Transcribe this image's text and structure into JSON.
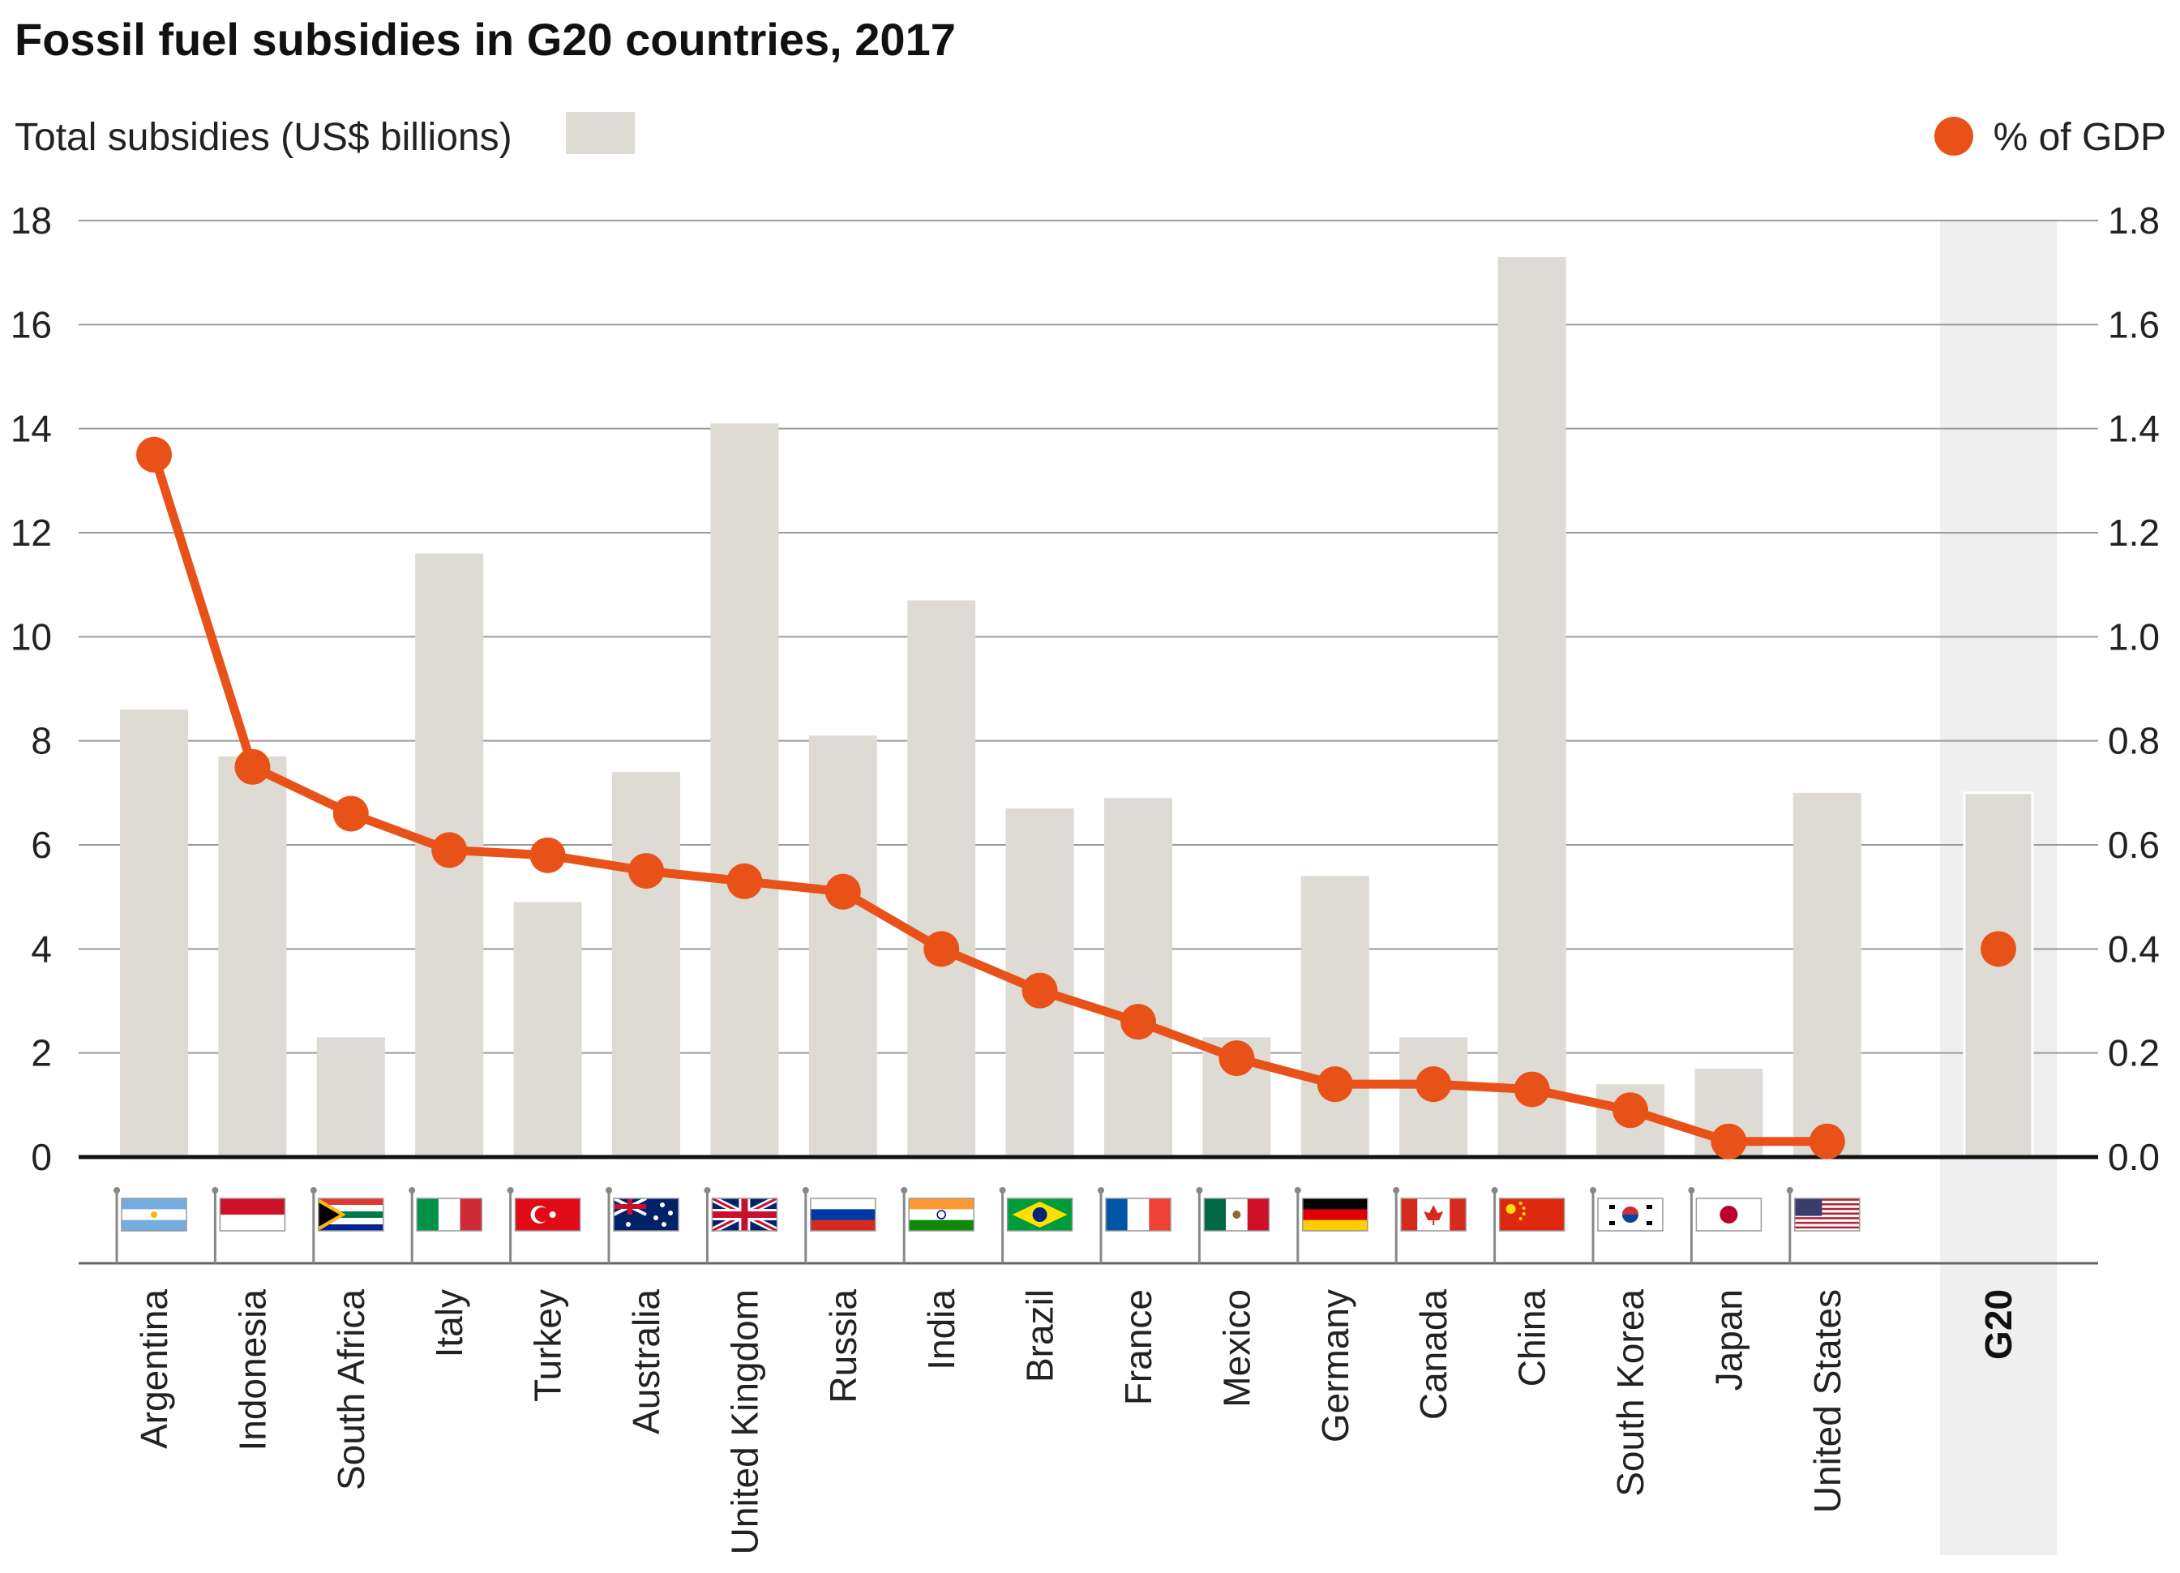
{
  "chart_data": {
    "type": "bar",
    "title": "Fossil fuel subsidies in G20 countries, 2017",
    "legend": {
      "bars_label": "Total subsidies (US$ billions)",
      "line_label": "% of GDP",
      "bars_placement": "top-left",
      "line_placement": "top-right"
    },
    "colors": {
      "bar": "#dddbd3",
      "line": "#e85219",
      "g20_band": "#efefef",
      "grid": "#9a9a9a",
      "axis": "#111111"
    },
    "categories": [
      "Argentina",
      "Indonesia",
      "South Africa",
      "Italy",
      "Turkey",
      "Australia",
      "United Kingdom",
      "Russia",
      "India",
      "Brazil",
      "France",
      "Mexico",
      "Germany",
      "Canada",
      "China",
      "South Korea",
      "Japan",
      "United States"
    ],
    "series": [
      {
        "name": "Total subsidies (US$ billions)",
        "axis": "left",
        "values": [
          8.6,
          7.7,
          2.3,
          11.6,
          4.9,
          7.4,
          14.1,
          8.1,
          10.7,
          6.7,
          6.9,
          2.3,
          5.4,
          2.3,
          17.3,
          1.4,
          1.7,
          7.0
        ]
      },
      {
        "name": "% of GDP",
        "axis": "right",
        "values": [
          1.35,
          0.75,
          0.66,
          0.59,
          0.58,
          0.55,
          0.53,
          0.51,
          0.4,
          0.32,
          0.26,
          0.19,
          0.14,
          0.14,
          0.13,
          0.09,
          0.03,
          0.03
        ]
      }
    ],
    "g20": {
      "label": "G20",
      "subsidies": 7.0,
      "pct_gdp": 0.4
    },
    "y_left": {
      "ylim": [
        0,
        18
      ],
      "ticks": [
        "0",
        "2",
        "4",
        "6",
        "8",
        "10",
        "12",
        "14",
        "16",
        "18"
      ]
    },
    "y_right": {
      "ylim": [
        0,
        1.8
      ],
      "ticks": [
        "0.0",
        "0.2",
        "0.4",
        "0.6",
        "0.8",
        "1.0",
        "1.2",
        "1.4",
        "1.6",
        "1.8"
      ]
    },
    "grid": true,
    "flags": [
      "argentina-flag",
      "indonesia-flag",
      "south-africa-flag",
      "italy-flag",
      "turkey-flag",
      "australia-flag",
      "united-kingdom-flag",
      "russia-flag",
      "india-flag",
      "brazil-flag",
      "france-flag",
      "mexico-flag",
      "germany-flag",
      "canada-flag",
      "china-flag",
      "south-korea-flag",
      "japan-flag",
      "united-states-flag"
    ]
  }
}
